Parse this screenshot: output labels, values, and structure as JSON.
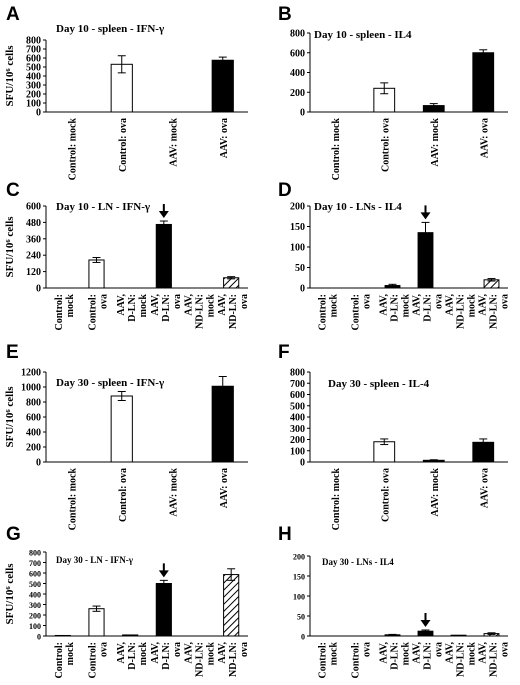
{
  "chart_data": [
    {
      "panel": "A",
      "type": "bar",
      "title": "Day 10 - spleen - IFN-γ",
      "ylabel": "SFU/10⁶ cells",
      "ylim": [
        0,
        800
      ],
      "yticks": [
        0,
        100,
        200,
        300,
        400,
        500,
        600,
        700,
        800
      ],
      "categories": [
        "Control: mock",
        "Control: ova",
        "AAV: mock",
        "AAV: ova"
      ],
      "values": [
        0,
        530,
        0,
        575
      ],
      "errors": [
        0,
        95,
        0,
        35
      ],
      "fills": [
        "white",
        "white",
        "black",
        "black"
      ],
      "arrow_index": null
    },
    {
      "panel": "B",
      "type": "bar",
      "title": "Day 10 - spleen - IL4",
      "ylabel": "",
      "ylim": [
        0,
        800
      ],
      "yticks": [
        0,
        200,
        400,
        600,
        800
      ],
      "categories": [
        "Control: mock",
        "Control: ova",
        "AAV: mock",
        "AAV: ova"
      ],
      "values": [
        0,
        240,
        65,
        600
      ],
      "errors": [
        0,
        55,
        20,
        30
      ],
      "fills": [
        "white",
        "white",
        "black",
        "black"
      ],
      "arrow_index": null
    },
    {
      "panel": "C",
      "type": "bar",
      "title": "Day 10 - LN - IFN-γ",
      "ylabel": "SFU/10⁶ cells",
      "ylim": [
        0,
        600
      ],
      "yticks": [
        0,
        120,
        240,
        360,
        480,
        600
      ],
      "categories": [
        "Control: mock",
        "Control: ova",
        "AAV, D-LN: mock",
        "AAV, D-LN: ova",
        "AAV, ND-LN: mock",
        "AAV, ND-LN: ova"
      ],
      "values": [
        0,
        205,
        0,
        465,
        0,
        75
      ],
      "errors": [
        0,
        18,
        0,
        25,
        0,
        8
      ],
      "fills": [
        "white",
        "white",
        "black",
        "black",
        "hatch",
        "hatch"
      ],
      "arrow_index": 3
    },
    {
      "panel": "D",
      "type": "bar",
      "title": "Day 10 - LNs - IL4",
      "ylabel": "",
      "ylim": [
        0,
        200
      ],
      "yticks": [
        0,
        50,
        100,
        150,
        200
      ],
      "categories": [
        "Control: mock",
        "Control: ova",
        "AAV, D-LN: mock",
        "AAV, D-LN: ova",
        "AAV, ND-LN: mock",
        "AAV, ND-LN: ova"
      ],
      "values": [
        0,
        0,
        6,
        135,
        0,
        20
      ],
      "errors": [
        0,
        0,
        3,
        25,
        0,
        3
      ],
      "fills": [
        "white",
        "white",
        "black",
        "black",
        "hatch",
        "hatch"
      ],
      "arrow_index": 3
    },
    {
      "panel": "E",
      "type": "bar",
      "title": "Day 30 - spleen - IFN-γ",
      "ylabel": "SFU/10⁶ cells",
      "ylim": [
        0,
        1200
      ],
      "yticks": [
        0,
        200,
        400,
        600,
        800,
        1000,
        1200
      ],
      "categories": [
        "Control: mock",
        "Control: ova",
        "AAV: mock",
        "AAV: ova"
      ],
      "values": [
        0,
        880,
        0,
        1010
      ],
      "errors": [
        0,
        60,
        0,
        130
      ],
      "fills": [
        "white",
        "white",
        "black",
        "black"
      ],
      "arrow_index": null
    },
    {
      "panel": "F",
      "type": "bar",
      "title": "Day 30 - spleen - IL-4",
      "ylabel": "",
      "ylim": [
        0,
        800
      ],
      "yticks": [
        0,
        100,
        200,
        300,
        400,
        500,
        600,
        700,
        800
      ],
      "categories": [
        "Control: mock",
        "Control: ova",
        "AAV: mock",
        "AAV: ova"
      ],
      "values": [
        0,
        180,
        15,
        175
      ],
      "errors": [
        0,
        25,
        5,
        30
      ],
      "fills": [
        "white",
        "white",
        "black",
        "black"
      ],
      "arrow_index": null
    },
    {
      "panel": "G",
      "type": "bar",
      "title": "Day 30 - LN - IFN-γ",
      "ylabel": "SFU/10⁶ cells",
      "ylim": [
        0,
        800
      ],
      "yticks": [
        0,
        100,
        200,
        300,
        400,
        500,
        600,
        700,
        800
      ],
      "categories": [
        "Control: mock",
        "Control: ova",
        "AAV, D-LN: mock",
        "AAV, D-LN: ova",
        "AAV, ND-LN: mock",
        "AAV, ND-LN: ova"
      ],
      "values": [
        5,
        260,
        10,
        500,
        0,
        585
      ],
      "errors": [
        0,
        25,
        0,
        30,
        0,
        55
      ],
      "fills": [
        "white",
        "white",
        "black",
        "black",
        "hatch",
        "hatch"
      ],
      "arrow_index": 3
    },
    {
      "panel": "H",
      "type": "bar",
      "title": "Day 30 - LNs - IL4",
      "ylabel": "",
      "ylim": [
        0,
        200
      ],
      "yticks": [
        0,
        50,
        100,
        150,
        200
      ],
      "categories": [
        "Control: mock",
        "Control: ova",
        "AAV, D-LN: mock",
        "AAV, D-LN: ova",
        "AAV, ND-LN: mock",
        "AAV, ND-LN: ova"
      ],
      "values": [
        0,
        0,
        3,
        12,
        2,
        6
      ],
      "errors": [
        0,
        0,
        1,
        3,
        0,
        2
      ],
      "fills": [
        "white",
        "white",
        "black",
        "black",
        "hatch",
        "hatch"
      ],
      "arrow_index": 3
    }
  ]
}
